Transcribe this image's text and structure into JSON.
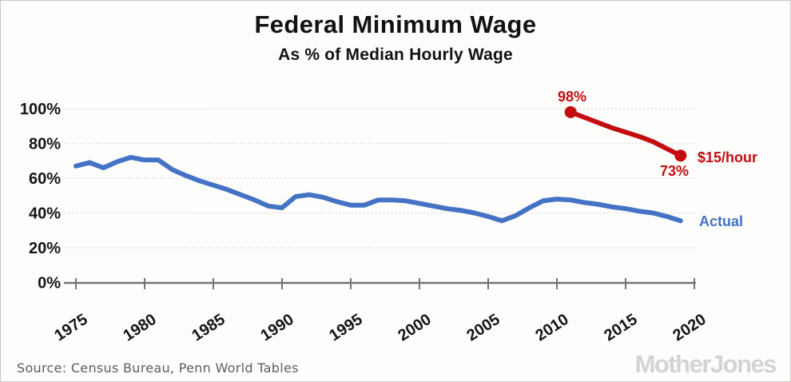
{
  "header": {
    "title": "Federal Minimum Wage",
    "subtitle": "As % of Median Hourly Wage"
  },
  "annotations": {
    "start_value_label": "98%",
    "end_value_label": "73%",
    "proposal_label": "$15/hour",
    "actual_label": "Actual"
  },
  "footer": {
    "source_text": "Source: Census Bureau, Penn World Tables",
    "logo_text": "MotherJones"
  },
  "colors": {
    "actual_line": "#4472c4",
    "proposal_line": "#c40d11",
    "axis": "#737373",
    "gridline": "#dcdad2",
    "tick_text": "#151515",
    "source_text": "#5d5d5d",
    "logo": "#d3d3d3",
    "background": "#fdfdfb"
  },
  "chart_data": {
    "type": "line",
    "title": "Federal Minimum Wage",
    "subtitle": "As % of Median Hourly Wage",
    "xlabel": "",
    "ylabel": "",
    "x_tick_labels": [
      "1975",
      "1980",
      "1985",
      "1990",
      "1995",
      "2000",
      "2005",
      "2010",
      "2015",
      "2020"
    ],
    "y_tick_labels": [
      "0%",
      "20%",
      "40%",
      "60%",
      "80%",
      "100%"
    ],
    "y_tick_values": [
      0,
      20,
      40,
      60,
      80,
      100
    ],
    "ylim": [
      0,
      100
    ],
    "xlim": [
      1974,
      2021
    ],
    "grid": "horizontal-dotted",
    "legend_position": "inline-right-of-line",
    "series": [
      {
        "name": "Actual",
        "color": "#4472c4",
        "x": [
          1975,
          1976,
          1977,
          1978,
          1979,
          1980,
          1981,
          1982,
          1983,
          1984,
          1985,
          1986,
          1987,
          1988,
          1989,
          1990,
          1991,
          1992,
          1993,
          1994,
          1995,
          1996,
          1997,
          1998,
          1999,
          2000,
          2001,
          2002,
          2003,
          2004,
          2005,
          2006,
          2007,
          2008,
          2009,
          2010,
          2011,
          2012,
          2013,
          2014,
          2015,
          2016,
          2017,
          2018,
          2019
        ],
        "values": [
          67,
          69,
          66,
          69.5,
          72,
          70.5,
          70.5,
          65,
          61.5,
          58.5,
          56,
          53.5,
          50.5,
          47.5,
          44,
          43,
          49.5,
          50.5,
          49,
          46.5,
          44.5,
          44.5,
          47.5,
          47.5,
          47,
          45.5,
          44,
          42.5,
          41.5,
          40,
          38,
          35.5,
          38.5,
          43,
          47,
          48,
          47.5,
          46,
          45,
          43.5,
          42.5,
          41,
          40,
          38,
          35.5
        ]
      },
      {
        "name": "$15/hour",
        "color": "#c40d11",
        "endpoint_markers": true,
        "first_point_label": "98%",
        "last_point_label": "73%",
        "x": [
          2011,
          2012,
          2013,
          2014,
          2015,
          2016,
          2017,
          2018,
          2019
        ],
        "values": [
          98,
          95,
          92,
          89,
          86.5,
          84,
          81,
          77,
          73
        ]
      }
    ]
  }
}
